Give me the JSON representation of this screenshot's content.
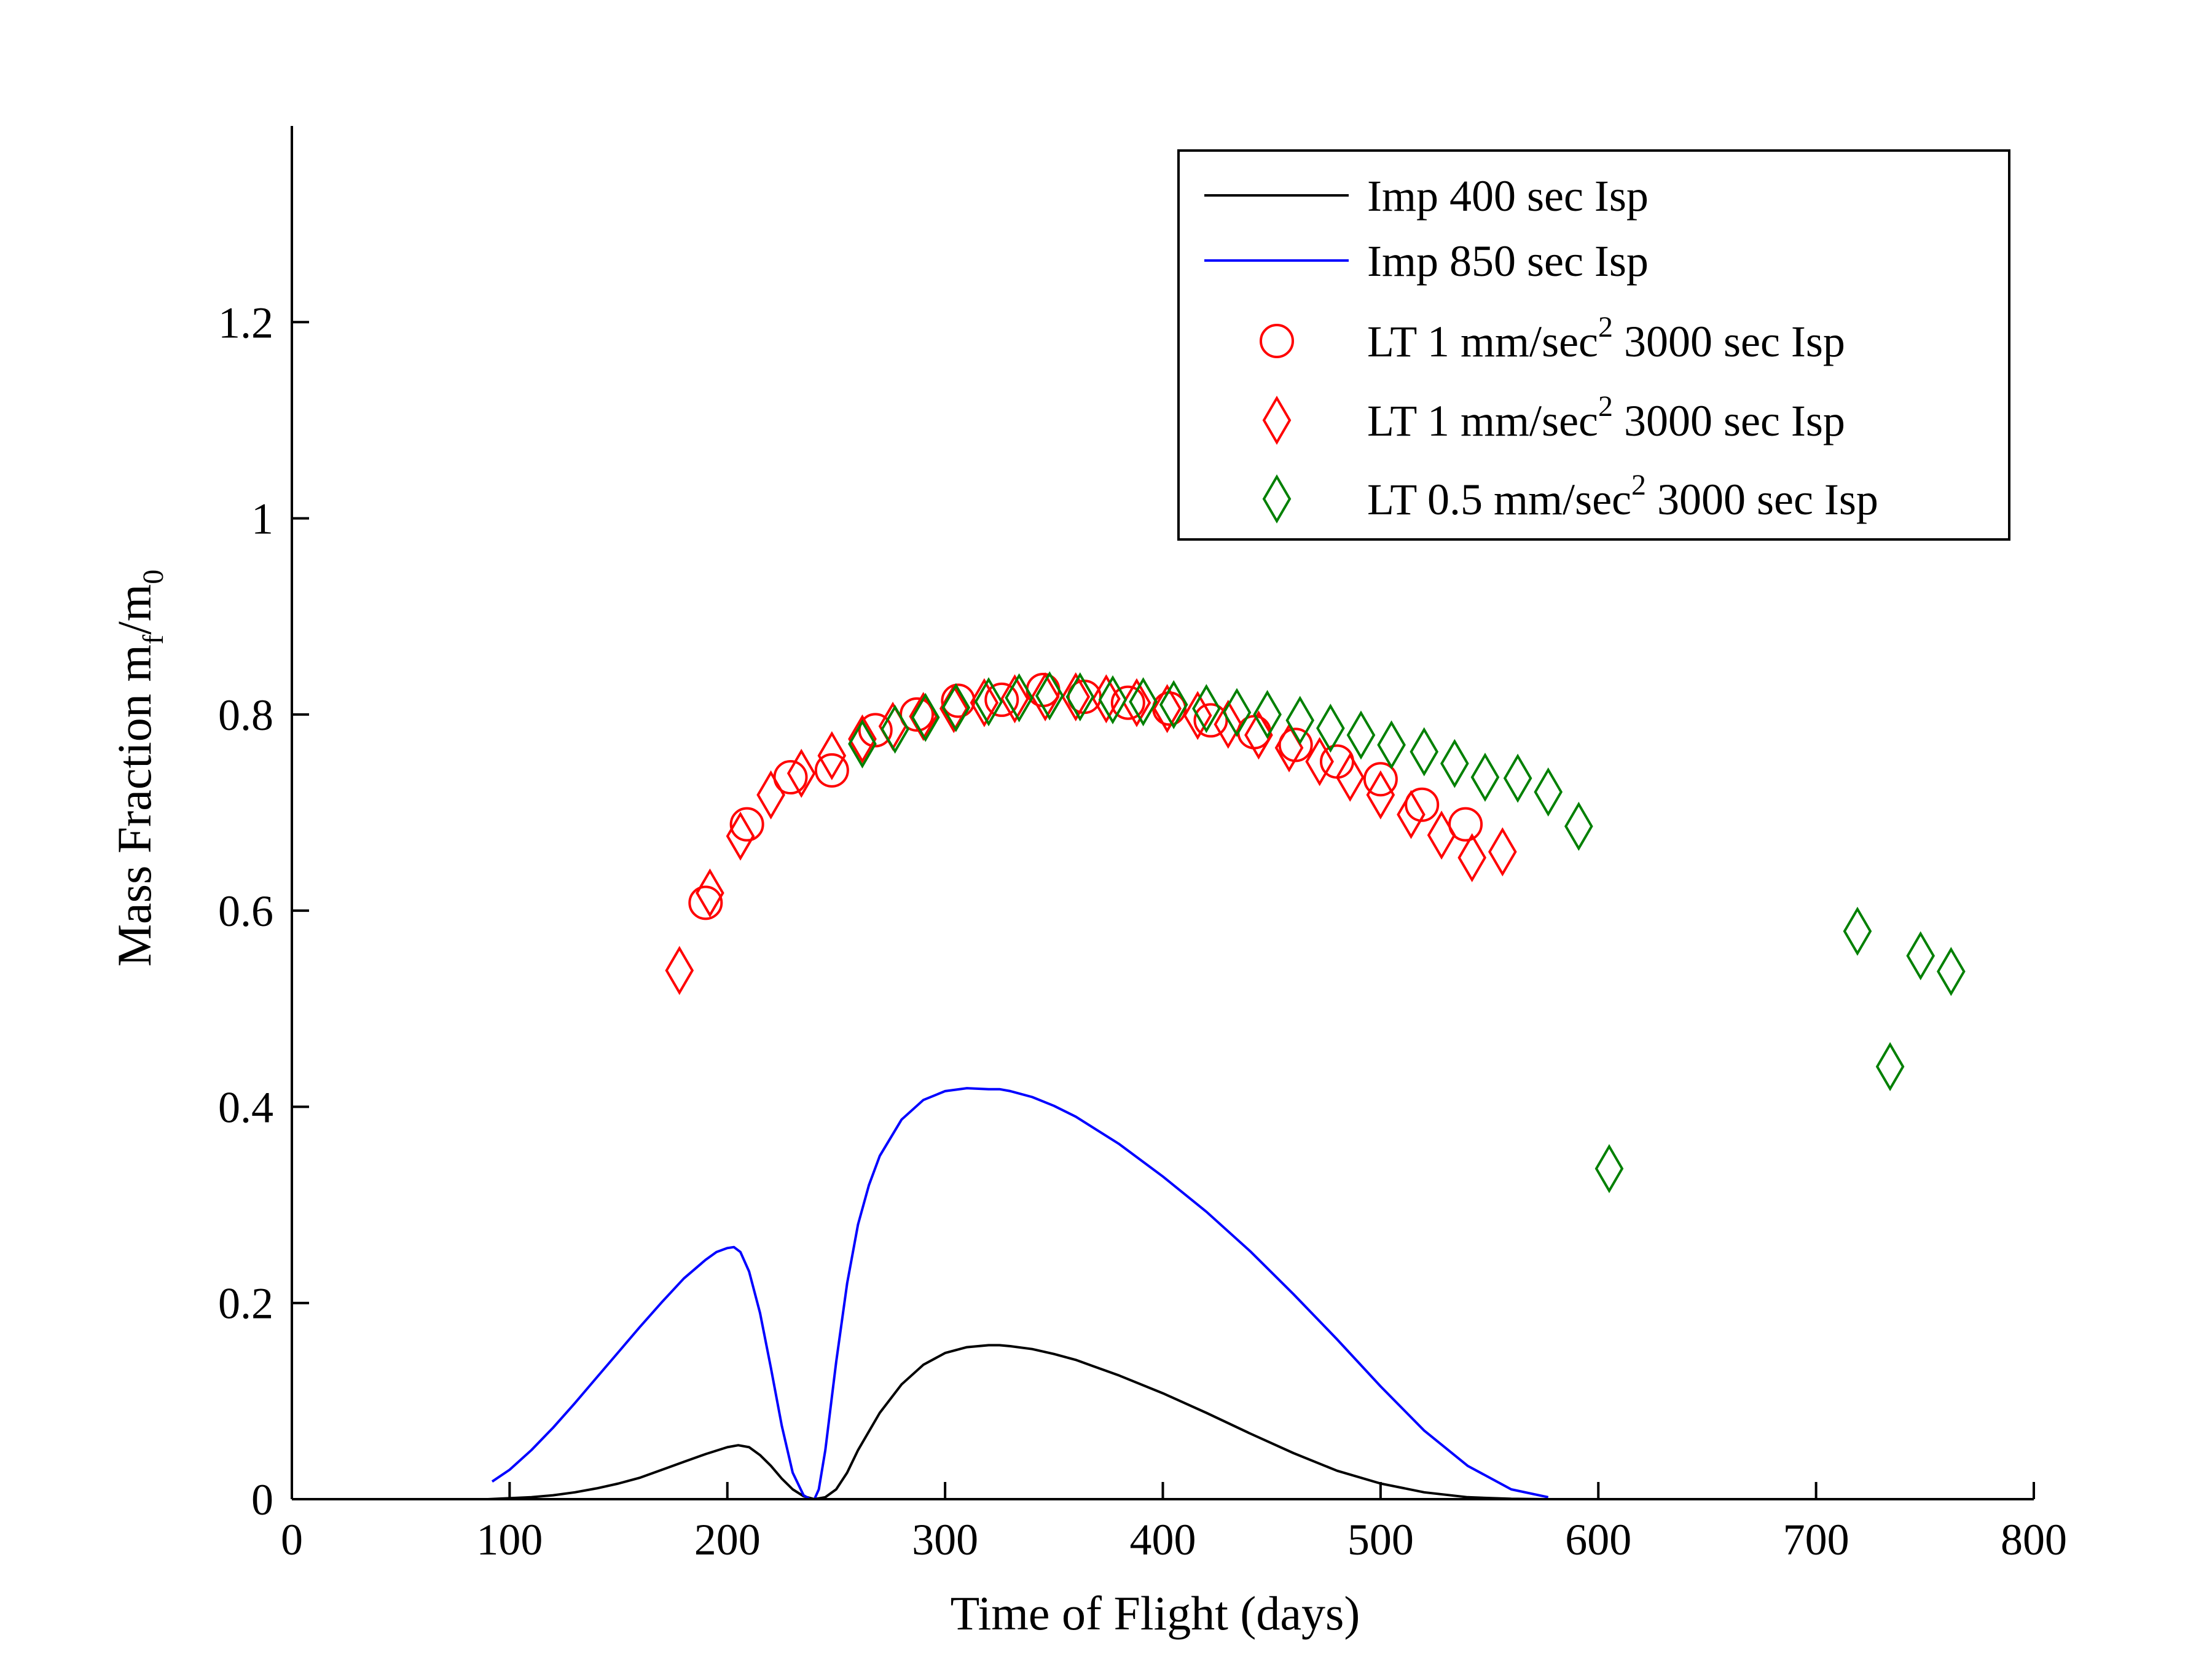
{
  "chart_data": {
    "type": "line",
    "xlabel": "Time of Flight (days)",
    "ylabel": {
      "base": "Mass Fraction m",
      "sub1": "f",
      "mid": "/m",
      "sub2": "0"
    },
    "xlim": [
      0,
      800
    ],
    "ylim": [
      0,
      1.4
    ],
    "xticks": [
      0,
      100,
      200,
      300,
      400,
      500,
      600,
      700,
      800
    ],
    "yticks": [
      0,
      0.2,
      0.4,
      0.6,
      0.8,
      1,
      1.2
    ],
    "xtick_labels": [
      "0",
      "100",
      "200",
      "300",
      "400",
      "500",
      "600",
      "700",
      "800"
    ],
    "ytick_labels": [
      "0",
      "0.2",
      "0.4",
      "0.6",
      "0.8",
      "1",
      "1.2"
    ],
    "grid": false,
    "legend_position": "top-right",
    "series": [
      {
        "name": "Imp 400 sec Isp",
        "legend": {
          "pre": "Imp 400 sec Isp",
          "sup": "",
          "post": ""
        },
        "kind": "line",
        "color": "#000000",
        "x": [
          90,
          100,
          110,
          120,
          130,
          140,
          150,
          160,
          170,
          180,
          190,
          200,
          205,
          210,
          215,
          220,
          225,
          230,
          235,
          240,
          245,
          250,
          255,
          260,
          270,
          280,
          290,
          300,
          310,
          320,
          325,
          330,
          340,
          350,
          360,
          380,
          400,
          420,
          440,
          460,
          480,
          500,
          520,
          540,
          560,
          575
        ],
        "y": [
          0,
          0.001,
          0.002,
          0.004,
          0.007,
          0.011,
          0.016,
          0.022,
          0.03,
          0.038,
          0.046,
          0.053,
          0.055,
          0.053,
          0.045,
          0.034,
          0.021,
          0.01,
          0.003,
          0,
          0.002,
          0.01,
          0.027,
          0.05,
          0.088,
          0.117,
          0.137,
          0.149,
          0.155,
          0.157,
          0.157,
          0.156,
          0.153,
          0.148,
          0.142,
          0.126,
          0.108,
          0.088,
          0.067,
          0.047,
          0.029,
          0.016,
          0.007,
          0.002,
          0.0004,
          0
        ]
      },
      {
        "name": "Imp 850 sec Isp",
        "legend": {
          "pre": "Imp 850 sec Isp",
          "sup": "",
          "post": ""
        },
        "kind": "line",
        "color": "#0000ff",
        "x": [
          92,
          100,
          110,
          120,
          130,
          140,
          150,
          160,
          170,
          180,
          190,
          195,
          200,
          203,
          206,
          210,
          215,
          220,
          225,
          230,
          235,
          238,
          240,
          242,
          245,
          250,
          255,
          260,
          265,
          270,
          280,
          290,
          300,
          310,
          320,
          325,
          330,
          340,
          350,
          360,
          380,
          400,
          420,
          440,
          460,
          480,
          500,
          520,
          540,
          560,
          577
        ],
        "y": [
          0.018,
          0.03,
          0.05,
          0.073,
          0.098,
          0.124,
          0.15,
          0.176,
          0.201,
          0.225,
          0.244,
          0.252,
          0.256,
          0.257,
          0.252,
          0.232,
          0.19,
          0.134,
          0.075,
          0.027,
          0.004,
          0,
          0,
          0.01,
          0.05,
          0.14,
          0.22,
          0.28,
          0.32,
          0.35,
          0.387,
          0.407,
          0.416,
          0.419,
          0.418,
          0.418,
          0.416,
          0.41,
          0.401,
          0.39,
          0.362,
          0.329,
          0.293,
          0.253,
          0.209,
          0.163,
          0.115,
          0.07,
          0.034,
          0.01,
          0.002
        ]
      },
      {
        "name": "LT 1 mm/sec2 3000 sec Isp",
        "legend": {
          "pre": "LT 1 mm/sec",
          "sup": "2",
          "post": " 3000 sec Isp"
        },
        "kind": "marker",
        "marker": "circle",
        "color": "#ff0000",
        "x": [
          190,
          209,
          229,
          248,
          268,
          287,
          306,
          326,
          345,
          364,
          384,
          403,
          422,
          442,
          461,
          480,
          500,
          519,
          539
        ],
        "y": [
          0.608,
          0.688,
          0.736,
          0.743,
          0.784,
          0.8,
          0.814,
          0.815,
          0.825,
          0.818,
          0.812,
          0.806,
          0.794,
          0.782,
          0.769,
          0.752,
          0.734,
          0.708,
          0.688
        ]
      },
      {
        "name": "LT 1 mm/sec2 3000 sec Isp",
        "legend": {
          "pre": "LT 1 mm/sec",
          "sup": "2",
          "post": " 3000 sec Isp"
        },
        "kind": "marker",
        "marker": "diamond",
        "color": "#ff0000",
        "x": [
          178,
          192,
          206,
          220,
          234,
          248,
          262,
          276,
          290,
          304,
          318,
          332,
          346,
          360,
          374,
          388,
          402,
          416,
          430,
          444,
          458,
          472,
          486,
          500,
          514,
          528,
          542,
          556
        ],
        "y": [
          0.539,
          0.618,
          0.676,
          0.718,
          0.74,
          0.758,
          0.775,
          0.788,
          0.798,
          0.806,
          0.812,
          0.816,
          0.818,
          0.818,
          0.816,
          0.812,
          0.806,
          0.799,
          0.79,
          0.779,
          0.766,
          0.752,
          0.736,
          0.718,
          0.698,
          0.677,
          0.654,
          0.66
        ]
      },
      {
        "name": "LT 0.5 mm/sec2 3000 sec Isp",
        "legend": {
          "pre": "LT 0.5 mm/sec",
          "sup": "2",
          "post": " 3000 sec Isp"
        },
        "kind": "marker",
        "marker": "diamond",
        "color": "#008000",
        "x": [
          262,
          277,
          291,
          305,
          320,
          334,
          348,
          362,
          377,
          391,
          405,
          420,
          434,
          448,
          463,
          477,
          491,
          505,
          520,
          534,
          548,
          563,
          577,
          591,
          605,
          719,
          734,
          748,
          762
        ],
        "y": [
          0.77,
          0.785,
          0.797,
          0.807,
          0.813,
          0.817,
          0.819,
          0.818,
          0.815,
          0.813,
          0.81,
          0.806,
          0.802,
          0.8,
          0.794,
          0.786,
          0.779,
          0.769,
          0.762,
          0.75,
          0.736,
          0.735,
          0.721,
          0.686,
          0.337,
          0.579,
          0.441,
          0.554,
          0.538
        ]
      }
    ]
  }
}
